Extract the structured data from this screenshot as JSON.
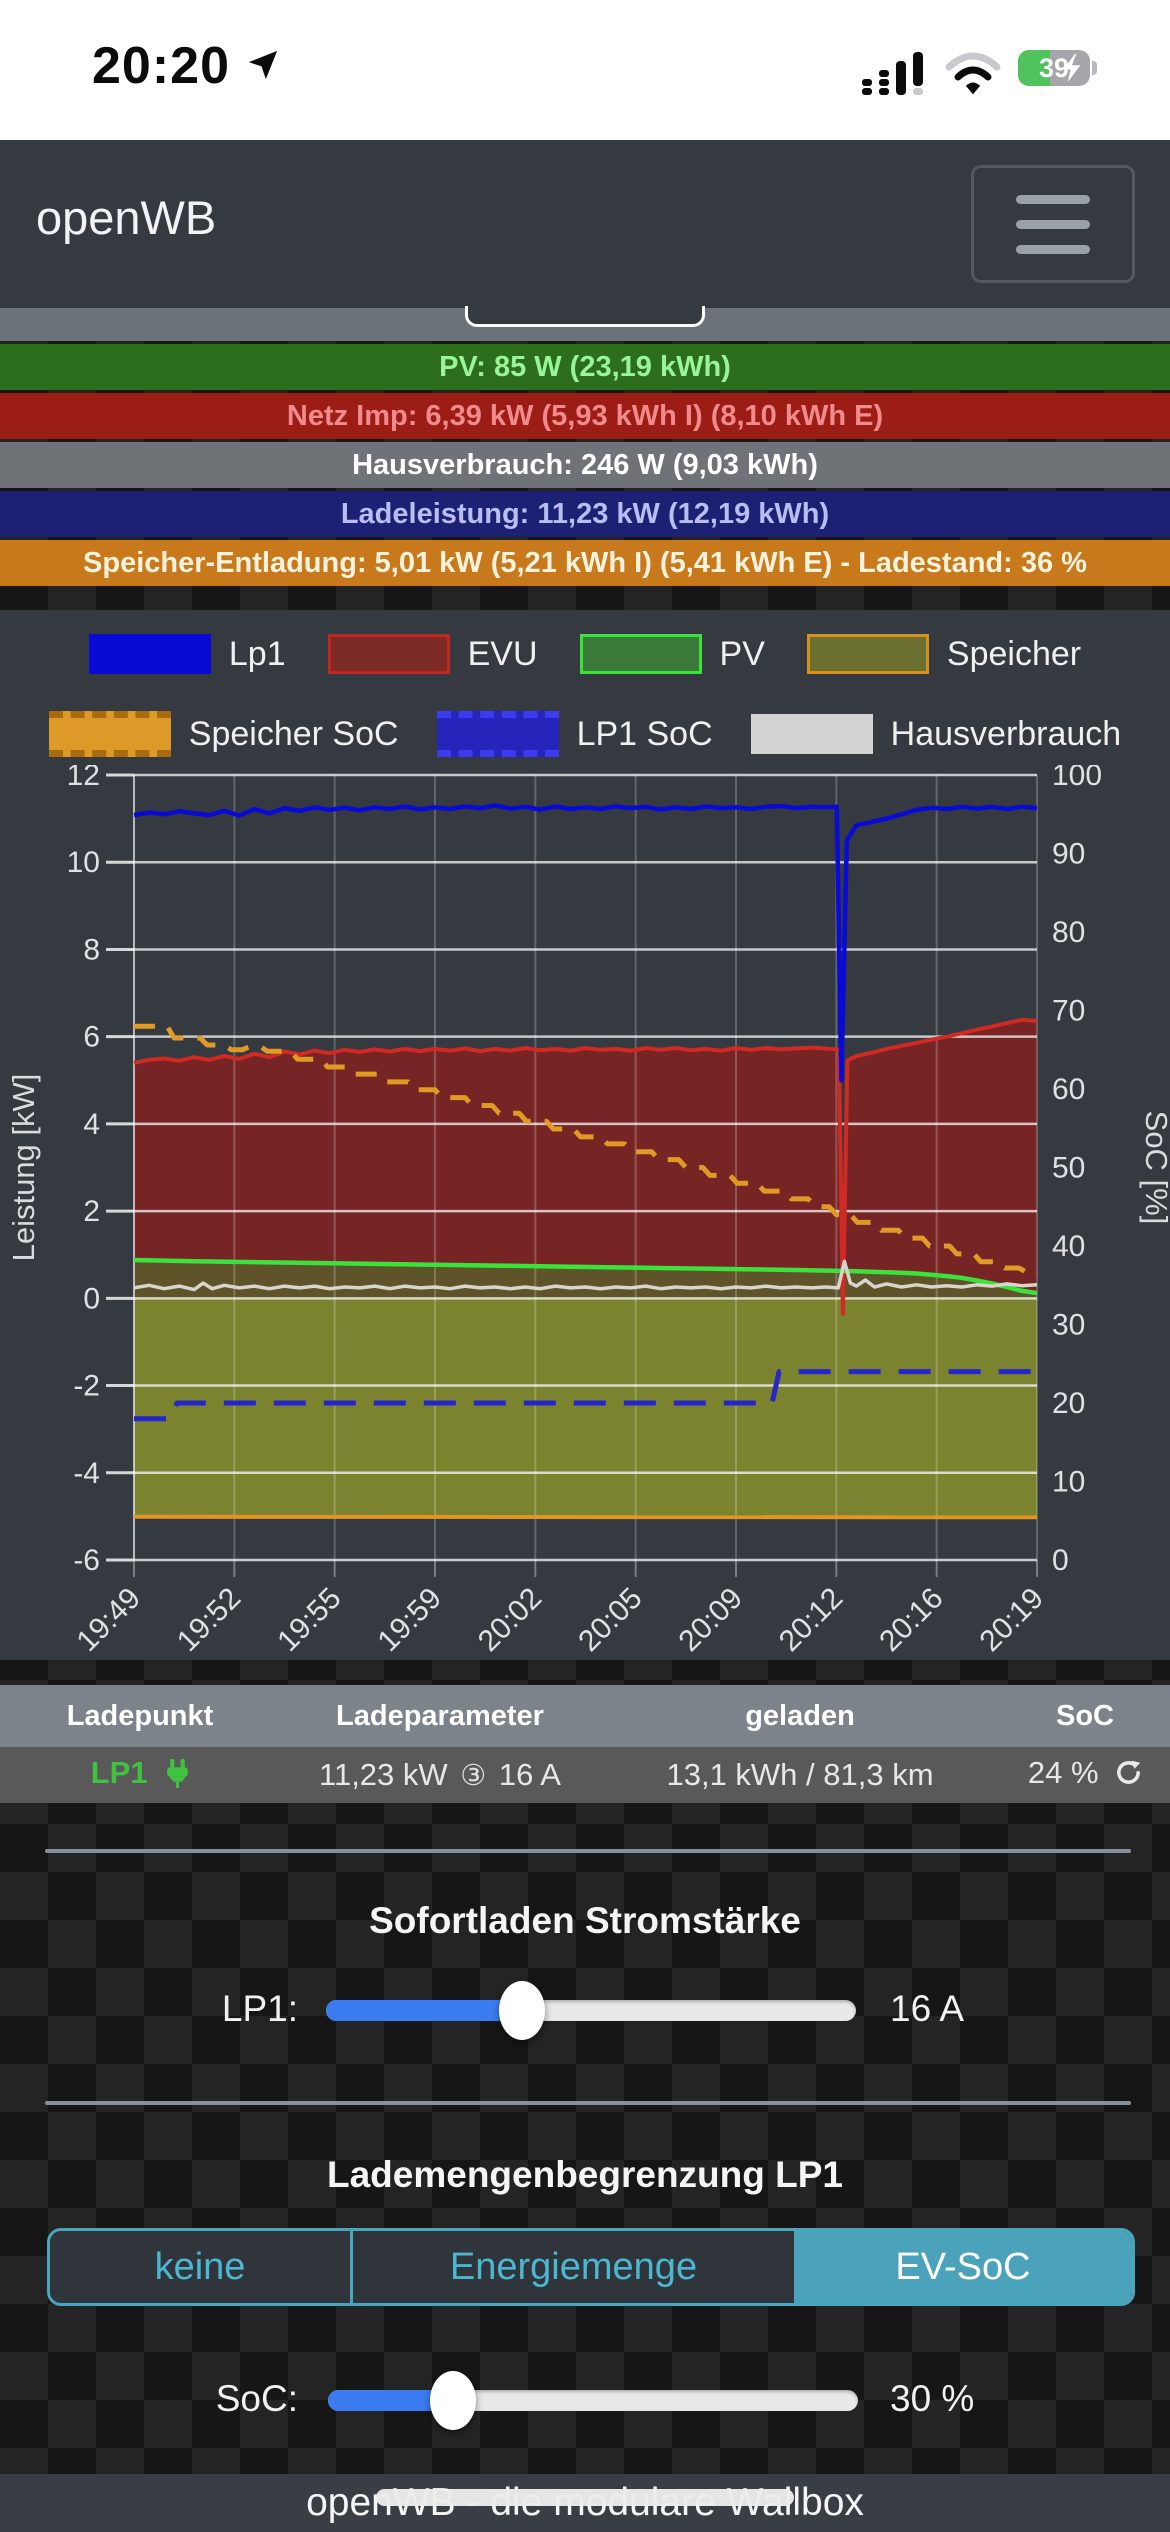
{
  "status_bar": {
    "time": "20:20",
    "battery_percent": "39"
  },
  "navbar": {
    "brand": "openWB"
  },
  "summary_bars": [
    {
      "id": "pv",
      "label": "PV: 85 W (23,19 kWh)",
      "bg": "#2d6e1d",
      "fg": "#98f598"
    },
    {
      "id": "grid",
      "label": "Netz Imp: 6,39 kW (5,93 kWh I) (8,10 kWh E)",
      "bg": "#9c1c16",
      "fg": "#f08b8b"
    },
    {
      "id": "house",
      "label": "Hausverbrauch: 246 W (9,03 kWh)",
      "bg": "#6f7276",
      "fg": "#ffffff"
    },
    {
      "id": "charge",
      "label": "Ladeleistung: 11,23 kW (12,19 kWh)",
      "bg": "#1d2173",
      "fg": "#b9bdf0"
    },
    {
      "id": "storage",
      "label": "Speicher-Entladung: 5,01 kW (5,21 kWh I) (5,41 kWh E) - Ladestand: 36 %",
      "bg": "#c8791c",
      "fg": "#fdf3dd"
    }
  ],
  "chart_data": {
    "type": "line",
    "x_ticks": [
      "19:49",
      "19:52",
      "19:55",
      "19:59",
      "20:02",
      "20:05",
      "20:09",
      "20:12",
      "20:16",
      "20:19"
    ],
    "x_range_minutes": [
      0,
      30
    ],
    "y_left": {
      "label": "Leistung [kW]",
      "min": -6,
      "max": 12,
      "tick_step": 2
    },
    "y_right": {
      "label": "SoC [%]",
      "min": 0,
      "max": 100,
      "tick_step": 10
    },
    "legend": {
      "row1": [
        {
          "label": "Lp1",
          "fill": "#0a0ad6",
          "border": "#0a0ad6"
        },
        {
          "label": "EVU",
          "fill": "#7c2b26",
          "border": "#c2271f"
        },
        {
          "label": "PV",
          "fill": "#3c7a39",
          "border": "#3ce23c"
        },
        {
          "label": "Speicher",
          "fill": "#6b7030",
          "border": "#d8901c"
        }
      ],
      "row2": [
        {
          "label": "Speicher SoC",
          "fill": "#dd9a28",
          "dashed": true,
          "dash_color": "#a86c0f"
        },
        {
          "label": "LP1 SoC",
          "fill": "#2525bb",
          "dashed": true,
          "dash_color": "#3b3bf0"
        },
        {
          "label": "Hausverbrauch",
          "fill": "#d3d3d3",
          "border": "#d3d3d3"
        }
      ]
    },
    "series": [
      {
        "name": "EVU",
        "axis": "left",
        "color": "#cf2a24",
        "width": 4,
        "fill": "rgba(140,30,27,0.75)",
        "points": [
          [
            0,
            5.4
          ],
          [
            0.5,
            5.47
          ],
          [
            1,
            5.5
          ],
          [
            1.5,
            5.45
          ],
          [
            2,
            5.53
          ],
          [
            2.5,
            5.47
          ],
          [
            3,
            5.56
          ],
          [
            3.5,
            5.49
          ],
          [
            4,
            5.61
          ],
          [
            4.5,
            5.53
          ],
          [
            5,
            5.66
          ],
          [
            5.5,
            5.59
          ],
          [
            6,
            5.68
          ],
          [
            6.5,
            5.62
          ],
          [
            7,
            5.7
          ],
          [
            7.5,
            5.65
          ],
          [
            8,
            5.71
          ],
          [
            8.5,
            5.66
          ],
          [
            9,
            5.72
          ],
          [
            9.5,
            5.67
          ],
          [
            10,
            5.72
          ],
          [
            10.5,
            5.68
          ],
          [
            11,
            5.73
          ],
          [
            11.5,
            5.67
          ],
          [
            12,
            5.72
          ],
          [
            12.5,
            5.68
          ],
          [
            13,
            5.74
          ],
          [
            13.5,
            5.69
          ],
          [
            14,
            5.72
          ],
          [
            14.5,
            5.68
          ],
          [
            15,
            5.74
          ],
          [
            15.5,
            5.7
          ],
          [
            16,
            5.72
          ],
          [
            16.5,
            5.68
          ],
          [
            17,
            5.74
          ],
          [
            17.5,
            5.7
          ],
          [
            18,
            5.74
          ],
          [
            18.5,
            5.69
          ],
          [
            19,
            5.72
          ],
          [
            19.5,
            5.68
          ],
          [
            20,
            5.74
          ],
          [
            20.5,
            5.7
          ],
          [
            21,
            5.74
          ],
          [
            21.5,
            5.71
          ],
          [
            22,
            5.73
          ],
          [
            22.6,
            5.75
          ],
          [
            23.1,
            5.72
          ],
          [
            23.42,
            5.71
          ],
          [
            23.55,
            -0.35
          ],
          [
            23.7,
            5.45
          ],
          [
            24,
            5.56
          ],
          [
            24.5,
            5.63
          ],
          [
            25,
            5.72
          ],
          [
            25.5,
            5.79
          ],
          [
            26,
            5.86
          ],
          [
            26.5,
            5.93
          ],
          [
            27,
            6.0
          ],
          [
            27.5,
            6.08
          ],
          [
            28,
            6.16
          ],
          [
            28.5,
            6.23
          ],
          [
            29,
            6.31
          ],
          [
            29.5,
            6.39
          ],
          [
            30,
            6.36
          ]
        ]
      },
      {
        "name": "PV",
        "axis": "left",
        "color": "#3ce23c",
        "width": 4.5,
        "fill": "rgba(70,130,45,0.5)",
        "points": [
          [
            0,
            0.88
          ],
          [
            2,
            0.85
          ],
          [
            4,
            0.83
          ],
          [
            6,
            0.81
          ],
          [
            8,
            0.79
          ],
          [
            10,
            0.77
          ],
          [
            12,
            0.75
          ],
          [
            14,
            0.73
          ],
          [
            16,
            0.71
          ],
          [
            18,
            0.69
          ],
          [
            20,
            0.67
          ],
          [
            22,
            0.65
          ],
          [
            24,
            0.62
          ],
          [
            25,
            0.6
          ],
          [
            26,
            0.57
          ],
          [
            27,
            0.51
          ],
          [
            27.5,
            0.47
          ],
          [
            28,
            0.41
          ],
          [
            28.5,
            0.34
          ],
          [
            29,
            0.26
          ],
          [
            29.5,
            0.17
          ],
          [
            30,
            0.12
          ]
        ]
      },
      {
        "name": "Speicher",
        "axis": "left",
        "color": "#e5941f",
        "width": 4,
        "fill": "rgba(142,150,42,0.8)",
        "points": [
          [
            0,
            -5.01
          ],
          [
            30,
            -5.02
          ]
        ]
      },
      {
        "name": "Hausverbrauch",
        "axis": "left",
        "color": "#d8d5cd",
        "width": 3.5,
        "points": [
          [
            0,
            0.24
          ],
          [
            0.5,
            0.3
          ],
          [
            1,
            0.22
          ],
          [
            1.5,
            0.28
          ],
          [
            2,
            0.2
          ],
          [
            2.3,
            0.35
          ],
          [
            2.6,
            0.22
          ],
          [
            3,
            0.3
          ],
          [
            3.5,
            0.24
          ],
          [
            4,
            0.28
          ],
          [
            4.5,
            0.22
          ],
          [
            5,
            0.28
          ],
          [
            5.5,
            0.24
          ],
          [
            6,
            0.28
          ],
          [
            6.5,
            0.22
          ],
          [
            7,
            0.26
          ],
          [
            7.5,
            0.24
          ],
          [
            8,
            0.28
          ],
          [
            8.5,
            0.22
          ],
          [
            9,
            0.28
          ],
          [
            9.5,
            0.24
          ],
          [
            10,
            0.26
          ],
          [
            10.5,
            0.22
          ],
          [
            11,
            0.28
          ],
          [
            11.5,
            0.24
          ],
          [
            12,
            0.26
          ],
          [
            12.5,
            0.22
          ],
          [
            13,
            0.26
          ],
          [
            13.5,
            0.22
          ],
          [
            14,
            0.28
          ],
          [
            14.5,
            0.24
          ],
          [
            15,
            0.26
          ],
          [
            15.5,
            0.22
          ],
          [
            16,
            0.26
          ],
          [
            16.5,
            0.24
          ],
          [
            17,
            0.28
          ],
          [
            17.5,
            0.22
          ],
          [
            18,
            0.26
          ],
          [
            18.5,
            0.24
          ],
          [
            19,
            0.26
          ],
          [
            19.5,
            0.22
          ],
          [
            20,
            0.26
          ],
          [
            20.5,
            0.24
          ],
          [
            21,
            0.28
          ],
          [
            21.5,
            0.24
          ],
          [
            22,
            0.26
          ],
          [
            22.5,
            0.24
          ],
          [
            23,
            0.26
          ],
          [
            23.4,
            0.24
          ],
          [
            23.6,
            0.85
          ],
          [
            23.8,
            0.35
          ],
          [
            24,
            0.28
          ],
          [
            24.3,
            0.42
          ],
          [
            24.6,
            0.26
          ],
          [
            25,
            0.33
          ],
          [
            25.5,
            0.26
          ],
          [
            26,
            0.31
          ],
          [
            26.5,
            0.26
          ],
          [
            27,
            0.29
          ],
          [
            27.5,
            0.26
          ],
          [
            28,
            0.31
          ],
          [
            28.5,
            0.28
          ],
          [
            29,
            0.33
          ],
          [
            29.5,
            0.29
          ],
          [
            30,
            0.31
          ]
        ]
      },
      {
        "name": "Lp1",
        "axis": "left",
        "color": "#0a0ad6",
        "width": 4.5,
        "points": [
          [
            0,
            11.08
          ],
          [
            0.5,
            11.14
          ],
          [
            1,
            11.1
          ],
          [
            1.5,
            11.17
          ],
          [
            2,
            11.12
          ],
          [
            2.5,
            11.08
          ],
          [
            3,
            11.18
          ],
          [
            3.5,
            11.07
          ],
          [
            4,
            11.22
          ],
          [
            4.5,
            11.12
          ],
          [
            5,
            11.24
          ],
          [
            5.5,
            11.18
          ],
          [
            6,
            11.26
          ],
          [
            6.5,
            11.2
          ],
          [
            7,
            11.25
          ],
          [
            7.5,
            11.19
          ],
          [
            8,
            11.26
          ],
          [
            8.5,
            11.22
          ],
          [
            9,
            11.28
          ],
          [
            9.5,
            11.21
          ],
          [
            10,
            11.26
          ],
          [
            10.5,
            11.22
          ],
          [
            11,
            11.28
          ],
          [
            11.5,
            11.24
          ],
          [
            12,
            11.3
          ],
          [
            12.5,
            11.23
          ],
          [
            13,
            11.27
          ],
          [
            13.5,
            11.21
          ],
          [
            14,
            11.28
          ],
          [
            14.5,
            11.22
          ],
          [
            15,
            11.26
          ],
          [
            15.5,
            11.22
          ],
          [
            16,
            11.28
          ],
          [
            16.5,
            11.24
          ],
          [
            17,
            11.27
          ],
          [
            17.5,
            11.21
          ],
          [
            18,
            11.26
          ],
          [
            18.5,
            11.22
          ],
          [
            19,
            11.28
          ],
          [
            19.5,
            11.24
          ],
          [
            20,
            11.26
          ],
          [
            20.5,
            11.22
          ],
          [
            21,
            11.27
          ],
          [
            21.5,
            11.29
          ],
          [
            22,
            11.24
          ],
          [
            22.5,
            11.27
          ],
          [
            23,
            11.26
          ],
          [
            23.35,
            11.27
          ],
          [
            23.5,
            5.0
          ],
          [
            23.68,
            10.5
          ],
          [
            24,
            10.85
          ],
          [
            24.5,
            10.92
          ],
          [
            25,
            11.0
          ],
          [
            25.5,
            11.1
          ],
          [
            26,
            11.2
          ],
          [
            26.5,
            11.25
          ],
          [
            27,
            11.22
          ],
          [
            27.5,
            11.27
          ],
          [
            28,
            11.23
          ],
          [
            28.5,
            11.27
          ],
          [
            29,
            11.22
          ],
          [
            29.5,
            11.27
          ],
          [
            30,
            11.24
          ]
        ]
      },
      {
        "name": "Speicher SoC",
        "axis": "right",
        "color": "#e09a26",
        "width": 5,
        "dash": "21 14",
        "step": true,
        "points": [
          [
            0,
            68
          ],
          [
            1.1,
            66.5
          ],
          [
            2.2,
            65.6
          ],
          [
            3.0,
            65.0
          ],
          [
            3.6,
            65.4
          ],
          [
            4.2,
            64.8
          ],
          [
            5.2,
            63.8
          ],
          [
            6.2,
            62.8
          ],
          [
            7.1,
            61.9
          ],
          [
            8.1,
            60.9
          ],
          [
            9.1,
            59.9
          ],
          [
            10.0,
            58.9
          ],
          [
            11.0,
            57.9
          ],
          [
            11.9,
            56.9
          ],
          [
            12.8,
            55.9
          ],
          [
            13.7,
            54.9
          ],
          [
            14.6,
            53.9
          ],
          [
            15.5,
            53.0
          ],
          [
            16.3,
            52.0
          ],
          [
            17.2,
            51.0
          ],
          [
            18.1,
            50.0
          ],
          [
            18.9,
            49.0
          ],
          [
            19.8,
            48.0
          ],
          [
            20.7,
            47.0
          ],
          [
            21.6,
            46.0
          ],
          [
            22.4,
            45.0
          ],
          [
            23.1,
            44.0
          ],
          [
            23.8,
            43.0
          ],
          [
            24.6,
            42.0
          ],
          [
            25.4,
            41.0
          ],
          [
            26.2,
            40.0
          ],
          [
            27.1,
            39.0
          ],
          [
            27.9,
            38.0
          ],
          [
            28.7,
            37.2
          ],
          [
            29.4,
            36.7
          ],
          [
            30,
            36.5
          ]
        ]
      },
      {
        "name": "LP1 SoC",
        "axis": "right",
        "color": "#2626c8",
        "width": 5,
        "dash": "32 18",
        "step": true,
        "points": [
          [
            0,
            18
          ],
          [
            1.2,
            20
          ],
          [
            21.2,
            24
          ],
          [
            30,
            24
          ]
        ]
      }
    ]
  },
  "chargepoint_table": {
    "headers": [
      "Ladepunkt",
      "Ladeparameter",
      "geladen",
      "SoC"
    ],
    "rows": [
      {
        "name": "LP1",
        "power": "11,23 kW",
        "phase_symbol": "③",
        "current": "16 A",
        "charged": "13,1 kWh / 81,3 km",
        "soc": "24 %"
      }
    ]
  },
  "instant_charge": {
    "heading": "Sofortladen Stromstärke",
    "slider_label": "LP1:",
    "value": "16 A",
    "fill_percent": 37
  },
  "charge_limit": {
    "heading": "Lademengenbegrenzung LP1",
    "options": [
      {
        "label": "keine",
        "active": false
      },
      {
        "label": "Energiemenge",
        "active": false
      },
      {
        "label": "EV-SoC",
        "active": true
      }
    ],
    "slider_label": "SoC:",
    "value": "30 %",
    "fill_percent": 23.5
  },
  "footer": {
    "text": "openWB - die modulare Wallbox"
  }
}
